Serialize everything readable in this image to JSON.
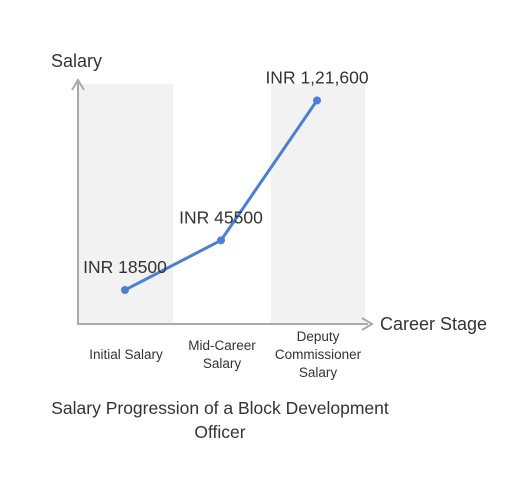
{
  "chart_data": {
    "type": "line",
    "title": "Salary Progression of a Block Development Officer",
    "title_lines": [
      "Salary Progression of a Block Development",
      "Officer"
    ],
    "xlabel": "Career Stage",
    "ylabel": "Salary",
    "categories": [
      {
        "label": "Initial Salary",
        "lines": [
          "Initial Salary"
        ]
      },
      {
        "label": "Mid-Career Salary",
        "lines": [
          "Mid-Career",
          "Salary"
        ]
      },
      {
        "label": "Deputy Commissioner Salary",
        "lines": [
          "Deputy",
          "Commissioner",
          "Salary"
        ]
      }
    ],
    "values": [
      18500,
      45500,
      121600
    ],
    "data_labels": [
      "INR 18500",
      "INR 45500",
      "INR 1,21,600"
    ],
    "ylim": [
      0,
      130000
    ],
    "grid": false,
    "band_style": "alternating shaded columns on 1st and 3rd category",
    "colors": {
      "line": "#4a7fd4",
      "point": "#4a7fd4",
      "axis": "#aaaaaa",
      "band": "#f2f2f2",
      "text": "#333333"
    }
  }
}
